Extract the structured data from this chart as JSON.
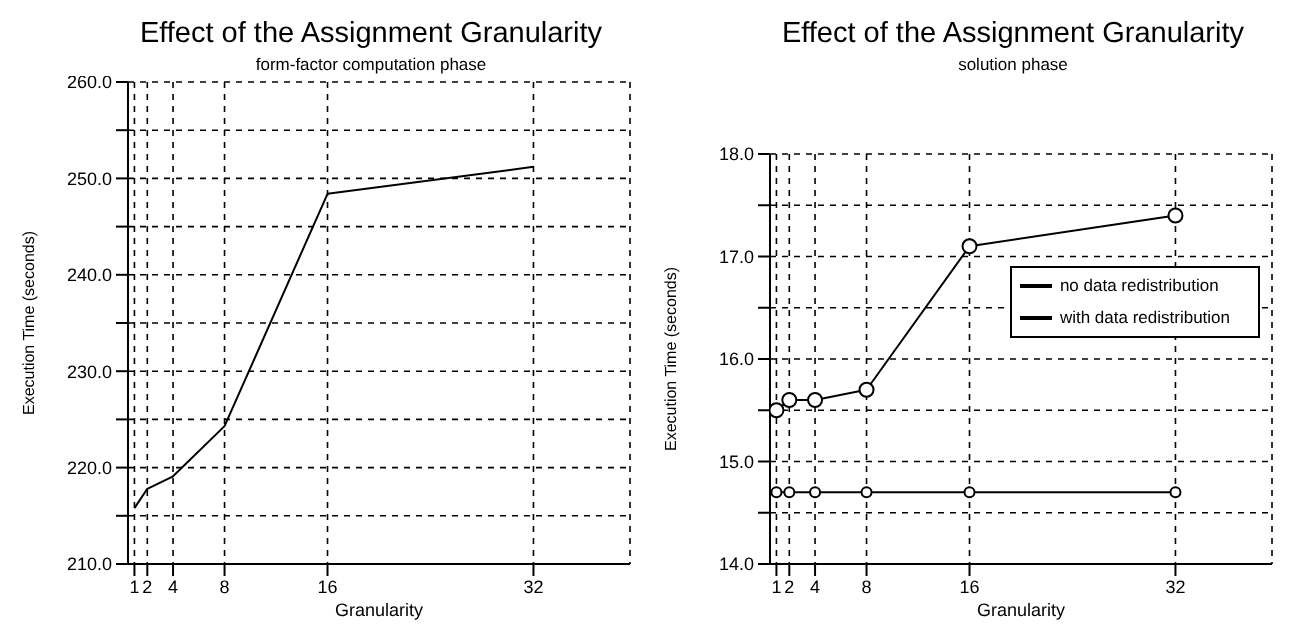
{
  "chart_data": [
    {
      "type": "line",
      "title": "Effect of the Assignment Granularity",
      "subtitle": "form-factor computation phase",
      "xlabel": "Granularity",
      "ylabel": "Execution Time (seconds)",
      "x": [
        1,
        2,
        4,
        8,
        16,
        32
      ],
      "series": [
        {
          "color": "#000000",
          "values": [
            215.8,
            217.8,
            219.1,
            224.3,
            248.4,
            251.2
          ]
        }
      ],
      "xlim": [
        0.5,
        39.5
      ],
      "xticks": [
        1,
        2,
        4,
        8,
        16,
        32
      ],
      "ylim": [
        210,
        260
      ],
      "yticks": [
        {
          "value": 210,
          "label": "210.0"
        },
        {
          "value": 215,
          "label": null
        },
        {
          "value": 220,
          "label": "220.0"
        },
        {
          "value": 225,
          "label": null
        },
        {
          "value": 230,
          "label": "230.0"
        },
        {
          "value": 235,
          "label": null
        },
        {
          "value": 240,
          "label": "240.0"
        },
        {
          "value": 245,
          "label": null
        },
        {
          "value": 250,
          "label": "250.0"
        },
        {
          "value": 255,
          "label": null
        },
        {
          "value": 260,
          "label": "260.0"
        }
      ],
      "grid": true,
      "marker": "none",
      "line_style": "solid"
    },
    {
      "type": "line",
      "title": "Effect of the Assignment Granularity",
      "subtitle": "solution phase",
      "xlabel": "Granularity",
      "ylabel": "Execution Time (seconds)",
      "x": [
        1,
        2,
        4,
        8,
        16,
        32
      ],
      "series": [
        {
          "name": "no data redistribution",
          "color": "#000000",
          "values": [
            15.5,
            15.6,
            15.6,
            15.7,
            17.1,
            17.4
          ]
        },
        {
          "name": "with data redistribution",
          "color": "#000000",
          "values": [
            14.7,
            14.7,
            14.7,
            14.7,
            14.7,
            14.7
          ]
        }
      ],
      "xlim": [
        0.5,
        39.5
      ],
      "xticks": [
        1,
        2,
        4,
        8,
        16,
        32
      ],
      "ylim": [
        14,
        18
      ],
      "yticks": [
        {
          "value": 14,
          "label": "14.0"
        },
        {
          "value": 14.5,
          "label": null
        },
        {
          "value": 15,
          "label": "15.0"
        },
        {
          "value": 15.5,
          "label": null
        },
        {
          "value": 16,
          "label": "16.0"
        },
        {
          "value": 16.5,
          "label": null
        },
        {
          "value": 17,
          "label": "17.0"
        },
        {
          "value": 17.5,
          "label": null
        },
        {
          "value": 18,
          "label": "18.0"
        }
      ],
      "grid": true,
      "legend": "right",
      "marker": "circle",
      "line_style": "solid"
    }
  ]
}
